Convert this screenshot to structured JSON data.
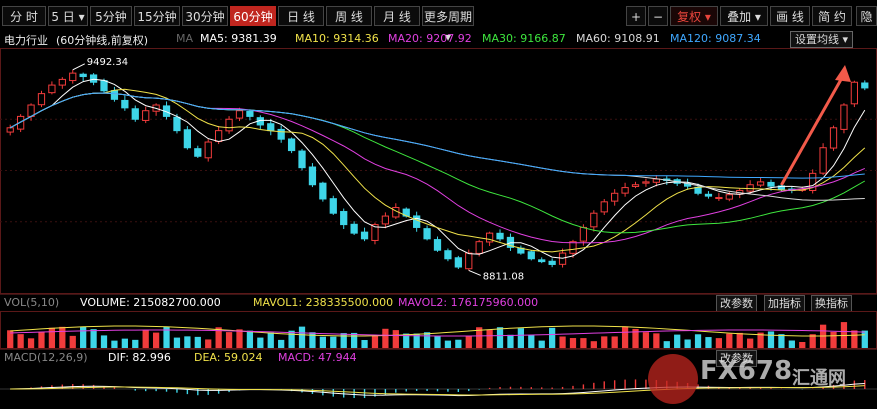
{
  "toolbar": {
    "left": [
      "分 时",
      "5 日",
      "5分钟",
      "15分钟",
      "30分钟",
      "60分钟",
      "日 线",
      "周 线",
      "月 线",
      "更多周期"
    ],
    "active_index": 5,
    "right": [
      "+",
      "−",
      "复权",
      "叠加",
      "画 线",
      "简 约",
      "隐"
    ]
  },
  "info": {
    "title": "电力行业",
    "period": "(60分钟线,前复权)",
    "ma_tag": "MA",
    "ma5": "MA5: 9381.39",
    "ma10": "MA10: 9314.36",
    "ma20": "MA20: 9207.92",
    "ma30": "MA30: 9166.87",
    "ma60": "MA60: 9108.91",
    "ma120": "MA120: 9087.34",
    "setting": "设置均线"
  },
  "annotations": {
    "high": "9492.34",
    "low": "8811.08"
  },
  "volume": {
    "title": "VOL(5,10)",
    "volume": "VOLUME: 215082700.000",
    "mavol1": "MAVOL1: 238335500.000",
    "mavol2": "MAVOL2: 176175960.000",
    "btn_params": "改参数",
    "btn_add": "加指标",
    "btn_switch": "换指标"
  },
  "macd": {
    "title": "MACD(12,26,9)",
    "dif": "DIF: 82.996",
    "dea": "DEA: 59.024",
    "macd": "MACD: 47.944",
    "btn_params": "改参数"
  },
  "watermark": {
    "main": "FX678",
    "sub": "汇通网"
  },
  "colors": {
    "up": "#f23c3c",
    "down": "#3ed5e8",
    "ma5": "#ffffff",
    "ma10": "#f0e24a",
    "ma20": "#e040e0",
    "ma30": "#3ee63e",
    "ma60": "#d8d8d8",
    "ma120": "#3fa8ff"
  },
  "chart_data": {
    "type": "candlestick",
    "y_high_label": 9492.34,
    "y_low_label": 8811.08,
    "close": [
      9300,
      9340,
      9380,
      9420,
      9450,
      9470,
      9492,
      9480,
      9460,
      9430,
      9400,
      9370,
      9330,
      9360,
      9380,
      9340,
      9290,
      9230,
      9200,
      9250,
      9290,
      9330,
      9360,
      9340,
      9310,
      9290,
      9260,
      9220,
      9160,
      9100,
      9050,
      9000,
      8960,
      8930,
      8910,
      8960,
      8990,
      9020,
      8990,
      8950,
      8910,
      8870,
      8840,
      8811,
      8860,
      8900,
      8930,
      8910,
      8880,
      8860,
      8840,
      8830,
      8820,
      8860,
      8900,
      8950,
      9000,
      9040,
      9070,
      9090,
      9100,
      9110,
      9120,
      9115,
      9105,
      9095,
      9070,
      9060,
      9055,
      9065,
      9080,
      9100,
      9110,
      9095,
      9085,
      9080,
      9085,
      9140,
      9230,
      9300,
      9380,
      9460,
      9440
    ]
  }
}
